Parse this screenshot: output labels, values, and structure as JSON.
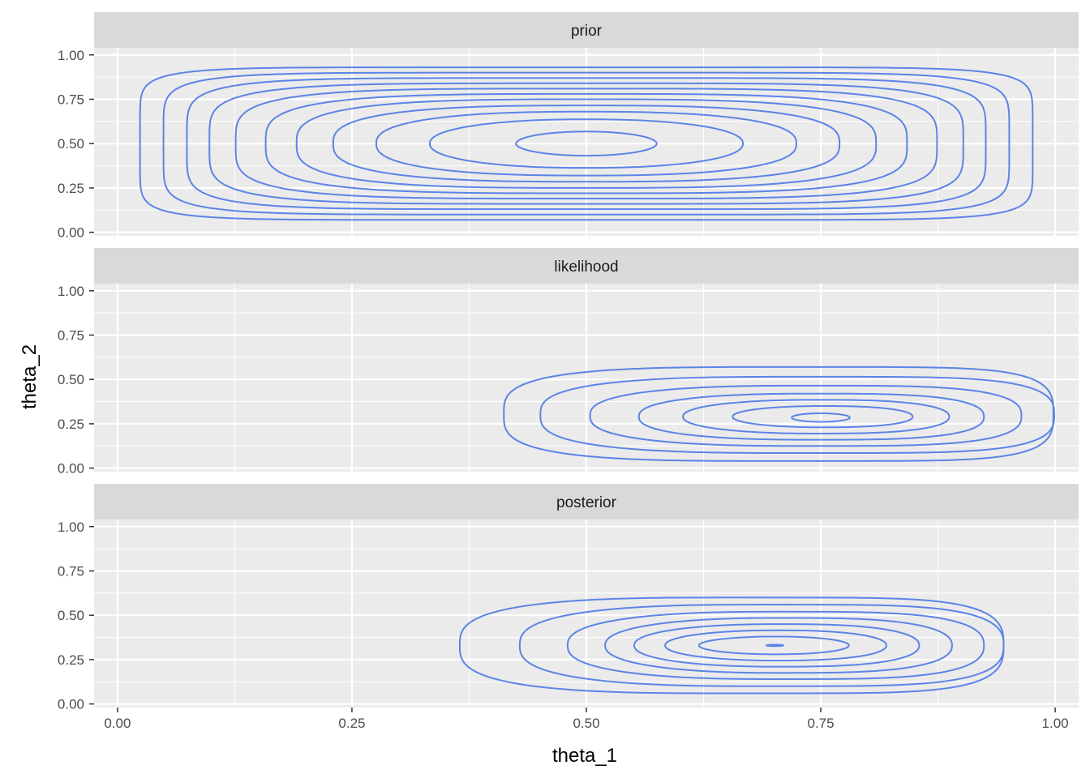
{
  "chart_data": {
    "type": "contour",
    "facets": [
      {
        "label": "prior",
        "contours": [
          {
            "cx": 0.5,
            "cy": 0.5,
            "rx": 0.075,
            "ry": 0.068,
            "p": 2.0,
            "skew": 0
          },
          {
            "cx": 0.5,
            "cy": 0.5,
            "rx": 0.167,
            "ry": 0.137,
            "p": 2.2,
            "skew": 0
          },
          {
            "cx": 0.5,
            "cy": 0.5,
            "rx": 0.224,
            "ry": 0.18,
            "p": 2.5,
            "skew": 0
          },
          {
            "cx": 0.5,
            "cy": 0.5,
            "rx": 0.27,
            "ry": 0.215,
            "p": 2.8,
            "skew": 0
          },
          {
            "cx": 0.5,
            "cy": 0.5,
            "rx": 0.309,
            "ry": 0.25,
            "p": 3.1,
            "skew": 0
          },
          {
            "cx": 0.5,
            "cy": 0.5,
            "rx": 0.342,
            "ry": 0.28,
            "p": 3.5,
            "skew": 0
          },
          {
            "cx": 0.5,
            "cy": 0.5,
            "rx": 0.374,
            "ry": 0.31,
            "p": 4.0,
            "skew": 0
          },
          {
            "cx": 0.5,
            "cy": 0.5,
            "rx": 0.402,
            "ry": 0.34,
            "p": 4.6,
            "skew": 0
          },
          {
            "cx": 0.5,
            "cy": 0.5,
            "rx": 0.426,
            "ry": 0.37,
            "p": 5.5,
            "skew": 0
          },
          {
            "cx": 0.5,
            "cy": 0.5,
            "rx": 0.451,
            "ry": 0.4,
            "p": 6.5,
            "skew": 0
          },
          {
            "cx": 0.5,
            "cy": 0.5,
            "rx": 0.476,
            "ry": 0.43,
            "p": 8.0,
            "skew": 0
          }
        ]
      },
      {
        "label": "likelihood",
        "contours": [
          {
            "cx": 0.75,
            "cy": 0.285,
            "rx": 0.031,
            "ry": 0.024,
            "p": 2.0,
            "skew": 0
          },
          {
            "cx": 0.752,
            "cy": 0.29,
            "rx": 0.096,
            "ry": 0.06,
            "p": 2.1,
            "skew": 0.3
          },
          {
            "cx": 0.745,
            "cy": 0.29,
            "rx": 0.142,
            "ry": 0.095,
            "p": 2.2,
            "skew": 0.4
          },
          {
            "cx": 0.74,
            "cy": 0.29,
            "rx": 0.184,
            "ry": 0.13,
            "p": 2.4,
            "skew": 0.5
          },
          {
            "cx": 0.734,
            "cy": 0.295,
            "rx": 0.23,
            "ry": 0.17,
            "p": 2.6,
            "skew": 0.6
          },
          {
            "cx": 0.725,
            "cy": 0.3,
            "rx": 0.274,
            "ry": 0.215,
            "p": 2.9,
            "skew": 0.7
          },
          {
            "cx": 0.705,
            "cy": 0.305,
            "rx": 0.293,
            "ry": 0.265,
            "p": 3.3,
            "skew": 0.8
          }
        ]
      },
      {
        "label": "posterior",
        "contours": [
          {
            "cx": 0.701,
            "cy": 0.33,
            "rx": 0.009,
            "ry": 0.004,
            "p": 2.0,
            "skew": 0
          },
          {
            "cx": 0.7,
            "cy": 0.33,
            "rx": 0.08,
            "ry": 0.05,
            "p": 2.0,
            "skew": 0.2
          },
          {
            "cx": 0.702,
            "cy": 0.33,
            "rx": 0.118,
            "ry": 0.085,
            "p": 2.1,
            "skew": 0.3
          },
          {
            "cx": 0.703,
            "cy": 0.33,
            "rx": 0.152,
            "ry": 0.12,
            "p": 2.2,
            "skew": 0.4
          },
          {
            "cx": 0.705,
            "cy": 0.33,
            "rx": 0.185,
            "ry": 0.155,
            "p": 2.3,
            "skew": 0.5
          },
          {
            "cx": 0.702,
            "cy": 0.33,
            "rx": 0.222,
            "ry": 0.19,
            "p": 2.5,
            "skew": 0.6
          },
          {
            "cx": 0.687,
            "cy": 0.33,
            "rx": 0.258,
            "ry": 0.23,
            "p": 2.7,
            "skew": 0.7
          },
          {
            "cx": 0.655,
            "cy": 0.33,
            "rx": 0.29,
            "ry": 0.27,
            "p": 3.0,
            "skew": 0.8
          }
        ]
      }
    ],
    "xlabel": "theta_1",
    "ylabel": "theta_2",
    "xlim": [
      -0.025,
      1.025
    ],
    "ylim": [
      -0.02,
      1.04
    ],
    "x_ticks": [
      0.0,
      0.25,
      0.5,
      0.75,
      1.0
    ],
    "x_tick_labels": [
      "0.00",
      "0.25",
      "0.50",
      "0.75",
      "1.00"
    ],
    "y_ticks": [
      0.0,
      0.25,
      0.5,
      0.75,
      1.0
    ],
    "y_tick_labels": [
      "0.00",
      "0.25",
      "0.50",
      "0.75",
      "1.00"
    ],
    "grid": true,
    "line_color": "#5b84e6",
    "panel_color": "#ebebeb",
    "strip_color": "#d9d9d9",
    "grid_color": "#ffffff"
  }
}
